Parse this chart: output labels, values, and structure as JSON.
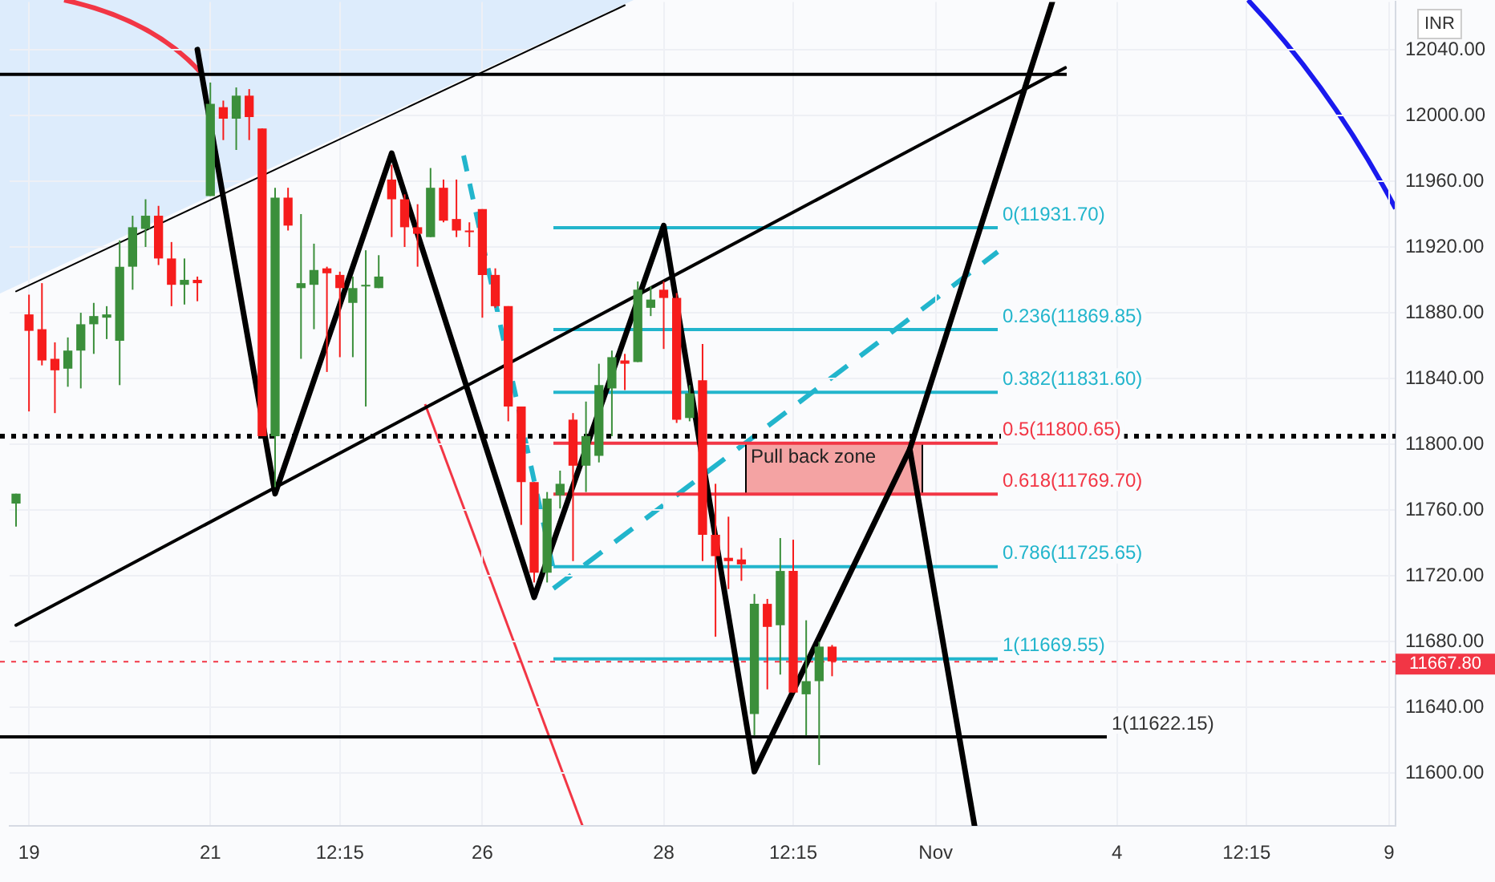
{
  "chart_data": {
    "type": "candlestick",
    "ylabel": "INR",
    "categories": [
      null,
      "19",
      null,
      null,
      null,
      null,
      null,
      null,
      null,
      null,
      null,
      null,
      null,
      null,
      null,
      "21",
      null,
      null,
      null,
      null,
      null,
      null,
      null,
      null,
      null,
      "12:15",
      null,
      null,
      null,
      null,
      null,
      null,
      null,
      null,
      null,
      null,
      "26",
      null,
      null,
      null,
      null,
      null,
      null,
      null,
      null,
      null,
      null,
      null,
      null,
      null,
      "28",
      null,
      null,
      null,
      null,
      null,
      null,
      null,
      null,
      null,
      "12:15",
      null,
      null,
      null,
      null,
      null,
      null,
      null,
      null,
      null,
      null,
      "Nov",
      null,
      null,
      null,
      null,
      null,
      null,
      null,
      null,
      null,
      null,
      null,
      null,
      null,
      "4",
      null,
      null,
      null,
      null,
      null,
      null,
      null,
      null,
      null,
      "12:15",
      null,
      null,
      null,
      null,
      null,
      null,
      null,
      null,
      null,
      null,
      "9"
    ],
    "ohlc": [
      [
        11764,
        11770,
        11750,
        11770
      ],
      [
        11879,
        11891,
        11820,
        11869
      ],
      [
        11870,
        11898,
        11848,
        11851
      ],
      [
        11852,
        11862,
        11819,
        11845
      ],
      [
        11846,
        11865,
        11835,
        11857
      ],
      [
        11857,
        11880,
        11834,
        11873
      ],
      [
        11873,
        11886,
        11855,
        11878
      ],
      [
        11877,
        11884,
        11864,
        11879
      ],
      [
        11863,
        11924,
        11836,
        11908
      ],
      [
        11908,
        11939,
        11894,
        11932
      ],
      [
        11931,
        11949,
        11920,
        11939
      ],
      [
        11939,
        11945,
        11909,
        11913
      ],
      [
        11913,
        11923,
        11884,
        11897
      ],
      [
        11897,
        11913,
        11885,
        11900
      ],
      [
        11900,
        11902,
        11887,
        11898
      ],
      [
        11951,
        12020,
        11951,
        12007
      ],
      [
        12005,
        12009,
        11985,
        11998
      ],
      [
        11998,
        12017,
        11979,
        12012
      ],
      [
        12012,
        12016,
        11985,
        11999
      ],
      [
        11992,
        11992,
        11805,
        11805
      ],
      [
        11805,
        11956,
        11774,
        11950
      ],
      [
        11950,
        11956,
        11930,
        11933
      ],
      [
        11895,
        11940,
        11852,
        11898
      ],
      [
        11897,
        11922,
        11870,
        11906
      ],
      [
        11907,
        11908,
        11844,
        11904
      ],
      [
        11903,
        11905,
        11853,
        11895
      ],
      [
        11886,
        11902,
        11853,
        11895
      ],
      [
        11896,
        11918,
        11823,
        11897
      ],
      [
        11895,
        11915,
        11895,
        11902
      ],
      [
        11961,
        11970,
        11926,
        11949
      ],
      [
        11949,
        11952,
        11920,
        11932
      ],
      [
        11932,
        11946,
        11908,
        11928
      ],
      [
        11926,
        11968,
        11926,
        11956
      ],
      [
        11956,
        11961,
        11935,
        11936
      ],
      [
        11937,
        11961,
        11926,
        11930
      ],
      [
        11930,
        11935,
        11920,
        11929
      ],
      [
        11943,
        11943,
        11877,
        11903
      ],
      [
        11903,
        11907,
        11883,
        11884
      ],
      [
        11884,
        11884,
        11814,
        11823
      ],
      [
        11823,
        11823,
        11751,
        11777
      ],
      [
        11777,
        11777,
        11716,
        11722
      ],
      [
        11722,
        11771,
        11716,
        11767
      ],
      [
        11769,
        11784,
        11761,
        11776
      ],
      [
        11815,
        11819,
        11729,
        11787
      ],
      [
        11787,
        11826,
        11771,
        11805
      ],
      [
        11793,
        11849,
        11789,
        11836
      ],
      [
        11834,
        11857,
        11805,
        11853
      ],
      [
        11851,
        11855,
        11833,
        11849
      ],
      [
        11850,
        11899,
        11850,
        11894
      ],
      [
        11883,
        11896,
        11878,
        11888
      ],
      [
        11894,
        11899,
        11858,
        11889
      ],
      [
        11889,
        11892,
        11813,
        11815
      ],
      [
        11816,
        11836,
        11814,
        11831
      ],
      [
        11839,
        11861,
        11729,
        11745
      ],
      [
        11745,
        11776,
        11683,
        11732
      ],
      [
        11731,
        11756,
        11712,
        11729
      ],
      [
        11730,
        11737,
        11717,
        11727
      ],
      [
        11636,
        11709,
        11623,
        11703
      ],
      [
        11703,
        11706,
        11651,
        11689
      ],
      [
        11690,
        11743,
        11660,
        11723
      ],
      [
        11723,
        11742,
        11649,
        11649
      ],
      [
        11648,
        11693,
        11623,
        11656
      ],
      [
        11656,
        11680,
        11605,
        11677
      ],
      [
        11677,
        11678,
        11659,
        11668
      ],
      null,
      null,
      null,
      null,
      null,
      null,
      null,
      null,
      null,
      null,
      null,
      null,
      null,
      null,
      null,
      null,
      null,
      null,
      null,
      null,
      null,
      null,
      null,
      null,
      null,
      null,
      null,
      null,
      null,
      null,
      null,
      null,
      null,
      null,
      null,
      null,
      null,
      null,
      null,
      null,
      null,
      null,
      null
    ],
    "colors": [
      "#3b8f3b",
      "#f61c1c",
      "#f61c1c",
      "#f61c1c",
      "#3b8f3b",
      "#3b8f3b",
      "#3b8f3b",
      "#3b8f3b",
      "#3b8f3b",
      "#3b8f3b",
      "#3b8f3b",
      "#f61c1c",
      "#f61c1c",
      "#3b8f3b",
      "#f61c1c",
      "#3b8f3b",
      "#f61c1c",
      "#3b8f3b",
      "#f61c1c",
      "#f61c1c",
      "#3b8f3b",
      "#f61c1c",
      "#3b8f3b",
      "#3b8f3b",
      "#f61c1c",
      "#f61c1c",
      "#3b8f3b",
      "#3b8f3b",
      "#3b8f3b",
      "#f61c1c",
      "#f61c1c",
      "#f61c1c",
      "#3b8f3b",
      "#f61c1c",
      "#f61c1c",
      "#f61c1c",
      "#f61c1c",
      "#f61c1c",
      "#f61c1c",
      "#f61c1c",
      "#f61c1c",
      "#3b8f3b",
      "#3b8f3b",
      "#f61c1c",
      "#3b8f3b",
      "#3b8f3b",
      "#3b8f3b",
      "#f61c1c",
      "#3b8f3b",
      "#3b8f3b",
      "#f61c1c",
      "#f61c1c",
      "#3b8f3b",
      "#f61c1c",
      "#f61c1c",
      "#f61c1c",
      "#f61c1c",
      "#3b8f3b",
      "#f61c1c",
      "#3b8f3b",
      "#f61c1c",
      "#3b8f3b",
      "#3b8f3b",
      "#f61c1c",
      null,
      null,
      null,
      null,
      null,
      null,
      null,
      null,
      null,
      null,
      null,
      null,
      null,
      null,
      null,
      null,
      null,
      null,
      null,
      null,
      null,
      null,
      null,
      null,
      null,
      null,
      null,
      null,
      null,
      null,
      null,
      null,
      null,
      null,
      null,
      null,
      null,
      null,
      null,
      null,
      null,
      null,
      null
    ],
    "ylim": [
      11568,
      12069
    ],
    "yticks": [
      {
        "value": 11600,
        "label": "11600.00"
      },
      {
        "value": 11640,
        "label": "11640.00"
      },
      {
        "value": 11680,
        "label": "11680.00"
      },
      {
        "value": 11720,
        "label": "11720.00"
      },
      {
        "value": 11760,
        "label": "11760.00"
      },
      {
        "value": 11800,
        "label": "11800.00"
      },
      {
        "value": 11840,
        "label": "11840.00"
      },
      {
        "value": 11880,
        "label": "11880.00"
      },
      {
        "value": 11920,
        "label": "11920.00"
      },
      {
        "value": 11960,
        "label": "11960.00"
      },
      {
        "value": 12000,
        "label": "12000.00"
      },
      {
        "value": 12040,
        "label": "12040.00"
      }
    ],
    "grid": true,
    "series": [
      {
        "type": "line",
        "color": "#000000",
        "values": [
          null,
          null,
          null,
          null,
          null,
          null,
          null,
          null,
          null,
          null,
          null,
          null,
          null,
          null,
          12040,
          null,
          null,
          null,
          null,
          null,
          11770,
          null,
          null,
          null,
          null,
          null,
          null,
          null,
          null,
          11977,
          null,
          null,
          null,
          null,
          null,
          null,
          null,
          null,
          null,
          null,
          11707,
          null,
          null,
          null,
          null,
          null,
          null,
          null,
          null,
          null,
          11933,
          null,
          null,
          null,
          null,
          null,
          null,
          11601,
          null,
          null,
          null,
          null,
          null,
          null,
          null,
          null,
          null,
          null,
          null,
          11797,
          null,
          null,
          null,
          null,
          null,
          null,
          null,
          null,
          null,
          null,
          12069,
          null,
          null,
          null,
          null,
          null,
          null,
          null,
          null,
          null,
          null,
          null,
          null,
          null,
          null,
          null,
          null,
          null,
          null,
          null,
          null,
          null,
          null,
          null,
          null,
          null,
          null
        ]
      },
      {
        "type": "line",
        "color": "#000000",
        "values": [
          null,
          null,
          null,
          null,
          null,
          null,
          null,
          null,
          null,
          null,
          null,
          null,
          null,
          null,
          null,
          null,
          null,
          null,
          null,
          null,
          null,
          null,
          null,
          null,
          null,
          null,
          null,
          null,
          null,
          null,
          null,
          null,
          null,
          null,
          null,
          null,
          null,
          null,
          null,
          null,
          null,
          null,
          null,
          null,
          null,
          null,
          null,
          null,
          null,
          null,
          null,
          null,
          null,
          null,
          null,
          null,
          null,
          null,
          null,
          null,
          null,
          null,
          null,
          null,
          null,
          null,
          null,
          null,
          null,
          11797,
          null,
          null,
          null,
          null,
          11568,
          null,
          null,
          null,
          null,
          null,
          null,
          null,
          null,
          null,
          null,
          null,
          null,
          null,
          null,
          null,
          null,
          null,
          null,
          null,
          null,
          null,
          null,
          null,
          null,
          null,
          null,
          null,
          null,
          null,
          null,
          null,
          null
        ]
      },
      {
        "type": "line",
        "color": "#000000",
        "values": [
          11893,
          null,
          null,
          null,
          null,
          null,
          null,
          null,
          null,
          null,
          null,
          null,
          null,
          null,
          null,
          null,
          null,
          null,
          null,
          null,
          null,
          null,
          null,
          null,
          null,
          null,
          null,
          null,
          null,
          null,
          null,
          null,
          null,
          null,
          null,
          null,
          null,
          null,
          null,
          null,
          null,
          null,
          null,
          null,
          null,
          null,
          null,
          12067,
          null,
          null,
          null,
          null,
          null,
          null,
          null,
          null,
          null,
          null,
          null,
          null,
          null,
          null,
          null,
          null,
          null,
          null,
          null,
          null,
          null,
          null,
          null,
          null,
          null,
          null,
          null,
          null,
          null,
          null,
          null,
          null,
          null,
          null,
          null,
          null,
          null,
          null,
          null,
          null,
          null,
          null,
          null,
          null,
          null,
          null,
          null,
          null,
          null,
          null,
          null,
          null,
          null,
          null,
          null,
          null,
          null,
          null,
          null
        ]
      },
      {
        "type": "line",
        "color": "#000000",
        "values": [
          11690,
          null,
          null,
          null,
          null,
          null,
          null,
          null,
          null,
          null,
          null,
          null,
          null,
          null,
          null,
          null,
          null,
          null,
          null,
          null,
          null,
          null,
          null,
          null,
          null,
          null,
          null,
          null,
          null,
          null,
          null,
          null,
          null,
          null,
          null,
          null,
          null,
          null,
          null,
          null,
          null,
          null,
          null,
          null,
          null,
          null,
          null,
          null,
          null,
          null,
          null,
          null,
          null,
          null,
          null,
          null,
          null,
          null,
          null,
          null,
          null,
          null,
          null,
          null,
          null,
          null,
          null,
          null,
          null,
          null,
          null,
          null,
          null,
          null,
          null,
          null,
          null,
          null,
          null,
          null,
          null,
          12029,
          null,
          null,
          null,
          null,
          null,
          null,
          null,
          null,
          null,
          null,
          null,
          null,
          null,
          null,
          null,
          null,
          null,
          null,
          null,
          null,
          null,
          null,
          null,
          null,
          null
        ]
      }
    ],
    "ref_lines": [
      {
        "axis": "y",
        "value": 11931.7,
        "label": "0(11931.70)",
        "color": "#22b5cc"
      },
      {
        "axis": "y",
        "value": 11869.85,
        "label": "0.236(11869.85)",
        "color": "#22b5cc"
      },
      {
        "axis": "y",
        "value": 11831.6,
        "label": "0.382(11831.60)",
        "color": "#22b5cc"
      },
      {
        "axis": "y",
        "value": 11800.65,
        "label": "0.5(11800.65)",
        "color": "#f23645"
      },
      {
        "axis": "y",
        "value": 11769.7,
        "label": "0.618(11769.70)",
        "color": "#f23645"
      },
      {
        "axis": "y",
        "value": 11725.65,
        "label": "0.786(11725.65)",
        "color": "#22b5cc"
      },
      {
        "axis": "y",
        "value": 11669.55,
        "label": "1(11669.55)",
        "color": "#22b5cc"
      },
      {
        "axis": "y",
        "value": 11622.15,
        "label": "1(11622.15)",
        "color": "#000000"
      },
      {
        "axis": "y",
        "value": 11805,
        "color": "#000000",
        "line_style": "dotted"
      },
      {
        "axis": "y",
        "value": 12025,
        "color": "#000000"
      },
      {
        "axis": "y",
        "value": 11667.8,
        "label": "11667.80",
        "color": "#f23645",
        "line_style": "dotted"
      }
    ],
    "bands": [
      {
        "axis": "y",
        "from": 11769.7,
        "to": 11800.65,
        "label": "Pull back zone",
        "color": "#f4a3a3"
      }
    ]
  }
}
